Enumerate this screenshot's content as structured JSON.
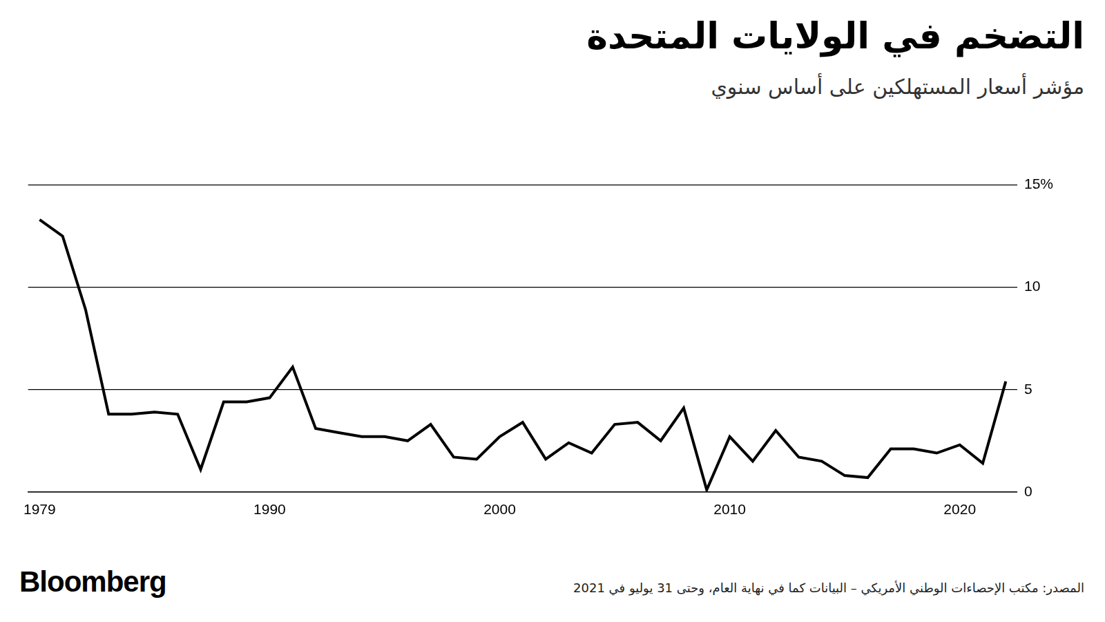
{
  "chart_data": {
    "type": "line",
    "title": "التضخم في الولايات المتحدة",
    "subtitle": "مؤشر أسعار المستهلكين على أساس سنوي",
    "source": "المصدر: مكتب الإحصاءات الوطني الأمريكي – البيانات كما في نهاية العام، وحتى 31 يوليو في 2021",
    "brand": "Bloomberg",
    "categories": [
      "1979",
      null,
      null,
      null,
      null,
      null,
      null,
      null,
      null,
      null,
      "1990",
      null,
      null,
      null,
      null,
      null,
      null,
      null,
      null,
      null,
      "2000",
      null,
      null,
      null,
      null,
      null,
      null,
      null,
      null,
      null,
      "2010",
      null,
      null,
      null,
      null,
      null,
      null,
      null,
      null,
      null,
      "2020",
      null,
      null
    ],
    "values": [
      13.3,
      12.5,
      8.9,
      3.8,
      3.8,
      3.9,
      3.8,
      1.1,
      4.4,
      4.4,
      4.6,
      6.1,
      3.1,
      2.9,
      2.7,
      2.7,
      2.5,
      3.3,
      1.7,
      1.6,
      2.7,
      3.4,
      1.6,
      2.4,
      1.9,
      3.3,
      3.4,
      2.5,
      4.1,
      0.1,
      2.7,
      1.5,
      3.0,
      1.7,
      1.5,
      0.8,
      0.7,
      2.1,
      2.1,
      1.9,
      2.3,
      1.4,
      5.4
    ],
    "color": "#000000",
    "ylim": [
      0,
      15
    ],
    "yticks": [
      0,
      5,
      10,
      {
        "value": 15,
        "label": "15%"
      }
    ],
    "grid": true
  }
}
